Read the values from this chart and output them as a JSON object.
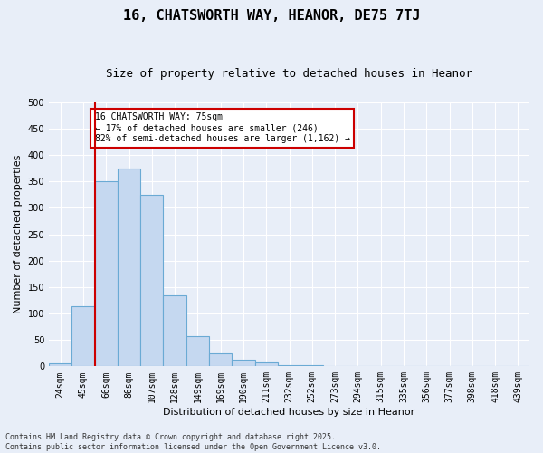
{
  "title1": "16, CHATSWORTH WAY, HEANOR, DE75 7TJ",
  "title2": "Size of property relative to detached houses in Heanor",
  "xlabel": "Distribution of detached houses by size in Heanor",
  "ylabel": "Number of detached properties",
  "categories": [
    "24sqm",
    "45sqm",
    "66sqm",
    "86sqm",
    "107sqm",
    "128sqm",
    "149sqm",
    "169sqm",
    "190sqm",
    "211sqm",
    "232sqm",
    "252sqm",
    "273sqm",
    "294sqm",
    "315sqm",
    "335sqm",
    "356sqm",
    "377sqm",
    "398sqm",
    "418sqm",
    "439sqm"
  ],
  "values": [
    5,
    113,
    350,
    375,
    325,
    135,
    57,
    25,
    12,
    8,
    3,
    2,
    1,
    1,
    1,
    1,
    1,
    1,
    1,
    1,
    1
  ],
  "bar_color": "#c5d8f0",
  "bar_edge_color": "#6aaad4",
  "vline_color": "#cc0000",
  "vline_x_idx": 1.5,
  "annotation_text": "16 CHATSWORTH WAY: 75sqm\n← 17% of detached houses are smaller (246)\n82% of semi-detached houses are larger (1,162) →",
  "annotation_box_facecolor": "#ffffff",
  "annotation_box_edgecolor": "#cc0000",
  "ylim": [
    0,
    500
  ],
  "yticks": [
    0,
    50,
    100,
    150,
    200,
    250,
    300,
    350,
    400,
    450,
    500
  ],
  "footer_text": "Contains HM Land Registry data © Crown copyright and database right 2025.\nContains public sector information licensed under the Open Government Licence v3.0.",
  "bg_color": "#e8eef8",
  "plot_bg_color": "#e8eef8",
  "grid_color": "#ffffff",
  "title1_fontsize": 11,
  "title2_fontsize": 9,
  "tick_fontsize": 7,
  "ylabel_fontsize": 8,
  "xlabel_fontsize": 8,
  "annot_fontsize": 7,
  "footer_fontsize": 6
}
